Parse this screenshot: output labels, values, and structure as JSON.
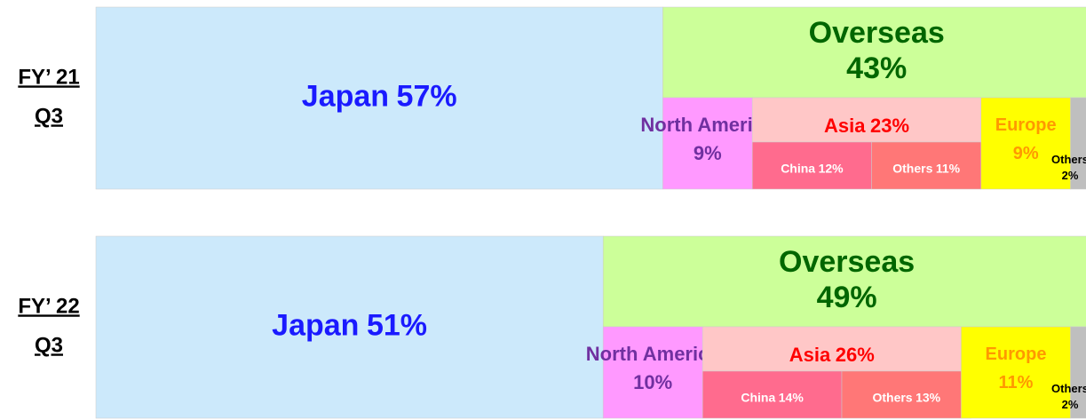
{
  "chart_data": [
    {
      "type": "share_bar",
      "period": [
        "FY’ 21",
        "Q3"
      ],
      "segments": [
        {
          "name": "Japan",
          "value": 57,
          "value_label": "57%",
          "color": "#cce9fb",
          "label_color": "#1a1aff"
        },
        {
          "name": "Overseas",
          "value": 43,
          "value_label": "43%",
          "color": "#ccff99",
          "label_color": "#006600",
          "children": [
            {
              "name": "North America",
              "value": 9,
              "value_label": "9%",
              "color": "#ff99ff",
              "label_color": "#7030a0"
            },
            {
              "name": "Asia",
              "value": 23,
              "value_label": "23%",
              "color": "#ffc7c7",
              "label_color": "#ff0000",
              "children": [
                {
                  "name": "China",
                  "value": 12,
                  "value_label": "12%",
                  "color": "#ff6b8e",
                  "label_color": "#ffffff"
                },
                {
                  "name": "Others",
                  "value": 11,
                  "value_label": "11%",
                  "color": "#ff7777",
                  "label_color": "#ffffff"
                }
              ]
            },
            {
              "name": "Europe",
              "value": 9,
              "value_label": "9%",
              "color": "#ffff00",
              "label_color": "#ff9900"
            },
            {
              "name": "Others",
              "value": 2,
              "value_label": "2%",
              "color": "#bfbfbf",
              "label_color": "#000000"
            }
          ]
        }
      ]
    },
    {
      "type": "share_bar",
      "period": [
        "FY’ 22",
        "Q3"
      ],
      "segments": [
        {
          "name": "Japan",
          "value": 51,
          "value_label": "51%",
          "color": "#cce9fb",
          "label_color": "#1a1aff"
        },
        {
          "name": "Overseas",
          "value": 49,
          "value_label": "49%",
          "color": "#ccff99",
          "label_color": "#006600",
          "children": [
            {
              "name": "North America",
              "value": 10,
              "value_label": "10%",
              "color": "#ff99ff",
              "label_color": "#7030a0"
            },
            {
              "name": "Asia",
              "value": 26,
              "value_label": "26%",
              "color": "#ffc7c7",
              "label_color": "#ff0000",
              "children": [
                {
                  "name": "China",
                  "value": 14,
                  "value_label": "14%",
                  "color": "#ff6b8e",
                  "label_color": "#ffffff"
                },
                {
                  "name": "Others",
                  "value": 13,
                  "value_label": "13%",
                  "color": "#ff7777",
                  "label_color": "#ffffff"
                }
              ]
            },
            {
              "name": "Europe",
              "value": 11,
              "value_label": "11%",
              "color": "#ffff00",
              "label_color": "#ff9900"
            },
            {
              "name": "Others",
              "value": 2,
              "value_label": "2%",
              "color": "#bfbfbf",
              "label_color": "#000000"
            }
          ]
        }
      ]
    }
  ]
}
